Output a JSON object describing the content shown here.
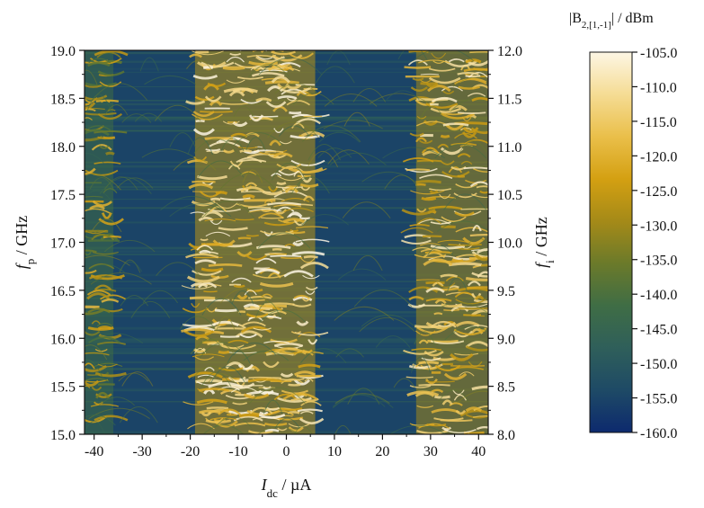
{
  "chart_data": {
    "type": "heatmap",
    "x_axis": {
      "label_main": "I",
      "label_sub": "dc",
      "label_unit": " /  µA",
      "range": [
        -42,
        42
      ],
      "ticks": [
        -40,
        -30,
        -20,
        -10,
        0,
        10,
        20,
        30,
        40
      ],
      "tick_labels": [
        "-40",
        "-30",
        "-20",
        "-10",
        "0",
        "10",
        "20",
        "30",
        "40"
      ]
    },
    "y_axis_left": {
      "label_main": "f",
      "label_sub": "p",
      "label_unit": " / GHz",
      "range": [
        15.0,
        19.0
      ],
      "ticks": [
        15.0,
        15.5,
        16.0,
        16.5,
        17.0,
        17.5,
        18.0,
        18.5,
        19.0
      ],
      "tick_labels": [
        "15.0",
        "15.5",
        "16.0",
        "16.5",
        "17.0",
        "17.5",
        "18.0",
        "18.5",
        "19.0"
      ]
    },
    "y_axis_right": {
      "label_main": "f",
      "label_sub": "i",
      "label_unit": " / GHz",
      "range": [
        8.0,
        12.0
      ],
      "ticks": [
        8.0,
        8.5,
        9.0,
        9.5,
        10.0,
        10.5,
        11.0,
        11.5,
        12.0
      ],
      "tick_labels": [
        "8.0",
        "8.5",
        "9.0",
        "9.5",
        "10.0",
        "10.5",
        "11.0",
        "11.5",
        "12.0"
      ]
    },
    "colorbar": {
      "title_prefix": "|B",
      "title_sub": "2,[1,-1]",
      "title_suffix": "| / dBm",
      "range": [
        -160,
        -105
      ],
      "ticks": [
        -105,
        -110,
        -115,
        -120,
        -125,
        -130,
        -135,
        -140,
        -145,
        -150,
        -155,
        -160
      ],
      "tick_labels": [
        "-105.0",
        "-110.0",
        "-115.0",
        "-120.0",
        "-125.0",
        "-130.0",
        "-135.0",
        "-140.0",
        "-145.0",
        "-150.0",
        "-155.0",
        "-160.0"
      ],
      "colors": [
        "#0d2a6e",
        "#1e4a66",
        "#2f5f5a",
        "#3f6d45",
        "#6b7a2a",
        "#a58a18",
        "#d4a012",
        "#eabf4a",
        "#f5dc94",
        "#fdf6e4"
      ]
    },
    "background_level_dBm": -155,
    "bright_bands": [
      {
        "x_range": [
          -42,
          -36
        ],
        "level_dBm": -130
      },
      {
        "x_range": [
          -19,
          6
        ],
        "level_dBm": -115
      },
      {
        "x_range": [
          27,
          42
        ],
        "level_dBm": -118
      }
    ],
    "grid": false,
    "legend": "colorbar-right"
  }
}
